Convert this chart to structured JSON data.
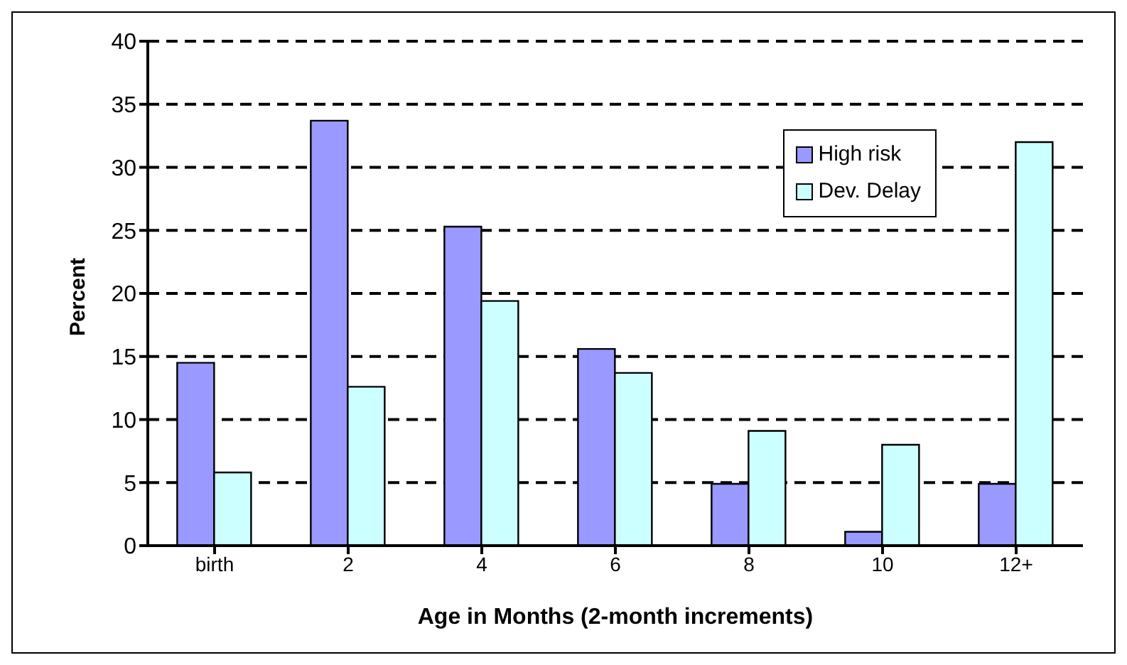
{
  "chart_data": {
    "type": "bar",
    "xlabel": "Age in Months (2-month increments)",
    "ylabel": "Percent",
    "categories": [
      "birth",
      "2",
      "4",
      "6",
      "8",
      "10",
      "12+"
    ],
    "series": [
      {
        "name": "High risk",
        "color": "#9999ff",
        "values": [
          14.5,
          33.7,
          25.3,
          15.6,
          4.9,
          1.1,
          4.9
        ]
      },
      {
        "name": "Dev. Delay",
        "color": "#ccffff",
        "values": [
          5.8,
          12.6,
          19.4,
          13.7,
          9.1,
          8.0,
          32.0
        ]
      }
    ],
    "ylim": [
      0,
      40
    ],
    "yticks": [
      0,
      5,
      10,
      15,
      20,
      25,
      30,
      35,
      40
    ],
    "grid": "y",
    "legend": "top right"
  }
}
